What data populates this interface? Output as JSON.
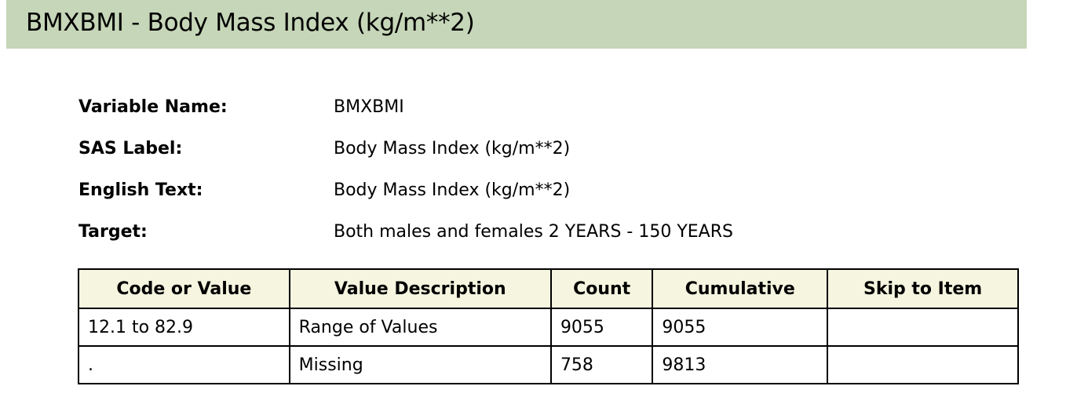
{
  "header": {
    "title": "BMXBMI - Body Mass Index (kg/m**2)"
  },
  "variable_info": [
    {
      "label": "Variable Name:",
      "value": "BMXBMI"
    },
    {
      "label": "SAS Label:",
      "value": "Body Mass Index (kg/m**2)"
    },
    {
      "label": "English Text:",
      "value": "Body Mass Index (kg/m**2)"
    },
    {
      "label": "Target:",
      "value": "Both males and females 2 YEARS - 150 YEARS"
    }
  ],
  "table": {
    "columns": [
      "Code or Value",
      "Value Description",
      "Count",
      "Cumulative",
      "Skip to Item"
    ],
    "rows": [
      [
        "12.1 to 82.9",
        "Range of Values",
        "9055",
        "9055",
        ""
      ],
      [
        ".",
        "Missing",
        "758",
        "9813",
        ""
      ]
    ]
  },
  "colors": {
    "header_bg": "#c6d6b8",
    "table_header_bg": "#f5f5e0"
  }
}
